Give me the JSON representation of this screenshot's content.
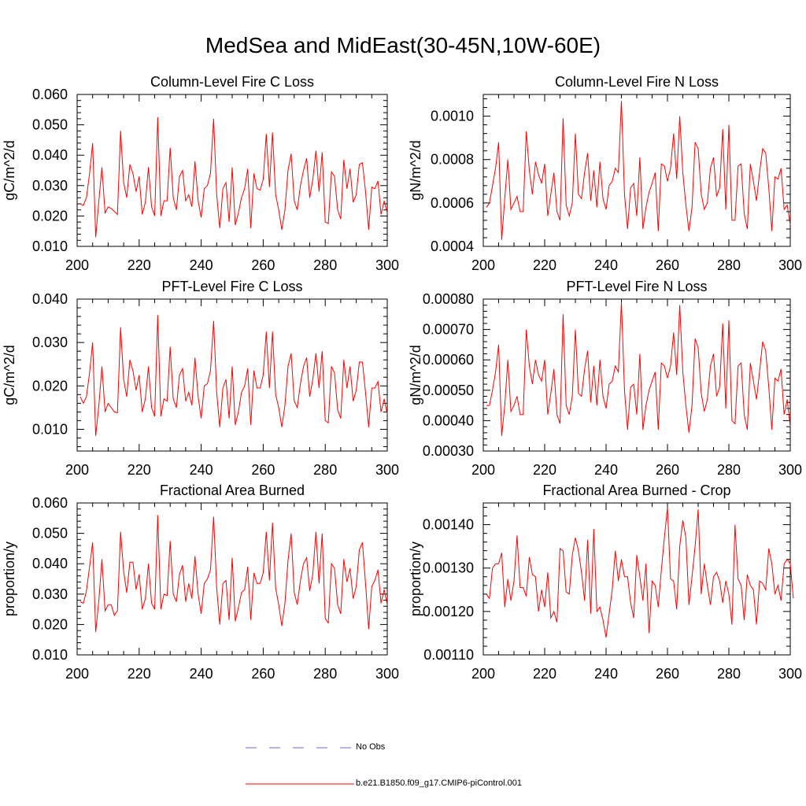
{
  "title": "MedSea and MidEast(30-45N,10W-60E)",
  "colors": {
    "model_line": "#ff0000",
    "obs_line": "#6a6acd",
    "axis": "#000000"
  },
  "legend": [
    {
      "label": "No Obs",
      "style": "dashed",
      "color": "#6a6acd"
    },
    {
      "label": "b.e21.B1850.f09_g17.CMIP6-piControl.001",
      "style": "solid",
      "color": "#ff0000"
    }
  ],
  "chart_data": [
    {
      "type": "line",
      "title": "Column-Level Fire C Loss",
      "ylabel": "gC/m^2/d",
      "xlim": [
        200,
        300
      ],
      "ylim": [
        0.01,
        0.06
      ],
      "xticks": [
        200,
        220,
        240,
        260,
        280,
        300
      ],
      "xtick_labels": [
        "200",
        "220",
        "240",
        "260",
        "280",
        "300"
      ],
      "yticks": [
        0.01,
        0.02,
        0.03,
        0.04,
        0.05,
        0.06
      ],
      "ytick_labels": [
        "0.010",
        "0.020",
        "0.030",
        "0.040",
        "0.050",
        "0.060"
      ],
      "series": [
        {
          "name": "b.e21.B1850.f09_g17.CMIP6-piControl.001",
          "x_start": 201,
          "values": [
            0.024,
            0.0235,
            0.026,
            0.034,
            0.044,
            0.013,
            0.025,
            0.036,
            0.021,
            0.023,
            0.0225,
            0.0215,
            0.0205,
            0.048,
            0.031,
            0.026,
            0.037,
            0.034,
            0.028,
            0.033,
            0.0205,
            0.0245,
            0.036,
            0.023,
            0.02,
            0.0525,
            0.02,
            0.025,
            0.025,
            0.0425,
            0.026,
            0.022,
            0.033,
            0.035,
            0.025,
            0.027,
            0.023,
            0.038,
            0.025,
            0.0195,
            0.029,
            0.03,
            0.034,
            0.052,
            0.027,
            0.016,
            0.029,
            0.031,
            0.018,
            0.036,
            0.017,
            0.021,
            0.026,
            0.029,
            0.0355,
            0.016,
            0.034,
            0.029,
            0.0285,
            0.032,
            0.047,
            0.0295,
            0.0475,
            0.027,
            0.022,
            0.0155,
            0.022,
            0.035,
            0.0405,
            0.025,
            0.022,
            0.03,
            0.035,
            0.039,
            0.026,
            0.032,
            0.0415,
            0.028,
            0.041,
            0.018,
            0.0175,
            0.0345,
            0.033,
            0.022,
            0.019,
            0.0385,
            0.029,
            0.0355,
            0.0245,
            0.027,
            0.037,
            0.0375,
            0.028,
            0.0155,
            0.0295,
            0.029,
            0.0315,
            0.0205,
            0.025,
            0.021
          ]
        }
      ]
    },
    {
      "type": "line",
      "title": "Column-Level Fire N Loss",
      "ylabel": "gN/m^2/d",
      "xlim": [
        200,
        300
      ],
      "ylim": [
        0.0004,
        0.0011
      ],
      "xticks": [
        200,
        220,
        240,
        260,
        280,
        300
      ],
      "xtick_labels": [
        "200",
        "220",
        "240",
        "260",
        "280",
        "300"
      ],
      "yticks": [
        0.0004,
        0.0006,
        0.0008,
        0.001
      ],
      "ytick_labels": [
        "0.0004",
        "0.0006",
        "0.0008",
        "0.0010"
      ],
      "series": [
        {
          "name": "b.e21.B1850.f09_g17.CMIP6-piControl.001",
          "x_start": 201,
          "values": [
            0.00058,
            0.0006,
            0.00068,
            0.00076,
            0.00088,
            0.00043,
            0.00062,
            0.0008,
            0.00057,
            0.0006,
            0.00063,
            0.00056,
            0.00056,
            0.00093,
            0.00075,
            0.00064,
            0.00079,
            0.00073,
            0.00069,
            0.00078,
            0.00054,
            0.00064,
            0.00074,
            0.00056,
            0.00052,
            0.00099,
            0.00059,
            0.00054,
            0.0006,
            0.00092,
            0.00064,
            0.00062,
            0.00074,
            0.00083,
            0.00061,
            0.00075,
            0.00058,
            0.00079,
            0.00062,
            0.00057,
            0.00068,
            0.0007,
            0.00076,
            0.00074,
            0.00107,
            0.00064,
            0.00048,
            0.00067,
            0.00069,
            0.00054,
            0.00081,
            0.00048,
            0.00058,
            0.00065,
            0.00069,
            0.00074,
            0.00047,
            0.00078,
            0.00077,
            0.0007,
            0.00076,
            0.00092,
            0.00071,
            0.001,
            0.00074,
            0.00059,
            0.00047,
            0.00058,
            0.00088,
            0.00085,
            0.00064,
            0.00057,
            0.0006,
            0.00076,
            0.00081,
            0.00063,
            0.00067,
            0.00094,
            0.00057,
            0.00096,
            0.00052,
            0.00052,
            0.00077,
            0.00078,
            0.00055,
            0.00048,
            0.00078,
            0.0007,
            0.00061,
            0.00074,
            0.00085,
            0.00083,
            0.00067,
            0.00047,
            0.00072,
            0.00071,
            0.00076,
            0.00057,
            0.00059,
            0.0005
          ]
        }
      ]
    },
    {
      "type": "line",
      "title": "PFT-Level Fire C Loss",
      "ylabel": "gC/m^2/d",
      "xlim": [
        200,
        300
      ],
      "ylim": [
        0.005,
        0.04
      ],
      "xticks": [
        200,
        220,
        240,
        260,
        280,
        300
      ],
      "xtick_labels": [
        "200",
        "220",
        "240",
        "260",
        "280",
        "300"
      ],
      "yticks": [
        0.01,
        0.02,
        0.03,
        0.04
      ],
      "ytick_labels": [
        "0.010",
        "0.020",
        "0.030",
        "0.040"
      ],
      "series": [
        {
          "name": "b.e21.B1850.f09_g17.CMIP6-piControl.001",
          "x_start": 201,
          "values": [
            0.0175,
            0.016,
            0.0175,
            0.023,
            0.03,
            0.0085,
            0.0155,
            0.0245,
            0.014,
            0.016,
            0.015,
            0.014,
            0.0138,
            0.0335,
            0.0215,
            0.0175,
            0.026,
            0.0235,
            0.019,
            0.0225,
            0.014,
            0.017,
            0.0245,
            0.015,
            0.013,
            0.0363,
            0.013,
            0.017,
            0.0165,
            0.029,
            0.017,
            0.015,
            0.0225,
            0.024,
            0.0165,
            0.0185,
            0.0155,
            0.0265,
            0.0175,
            0.0125,
            0.02,
            0.0205,
            0.0235,
            0.035,
            0.0185,
            0.0105,
            0.0195,
            0.0215,
            0.0125,
            0.0245,
            0.011,
            0.014,
            0.0185,
            0.02,
            0.024,
            0.011,
            0.0235,
            0.0195,
            0.0195,
            0.0225,
            0.0325,
            0.0195,
            0.0325,
            0.018,
            0.015,
            0.0105,
            0.0155,
            0.0245,
            0.0275,
            0.0165,
            0.015,
            0.0205,
            0.0245,
            0.0265,
            0.0175,
            0.0215,
            0.0275,
            0.0195,
            0.028,
            0.012,
            0.0115,
            0.0245,
            0.023,
            0.0145,
            0.0125,
            0.026,
            0.0195,
            0.0245,
            0.0165,
            0.019,
            0.0255,
            0.0255,
            0.0185,
            0.0105,
            0.0195,
            0.0195,
            0.021,
            0.014,
            0.017,
            0.0135
          ]
        }
      ]
    },
    {
      "type": "line",
      "title": "PFT-Level Fire N Loss",
      "ylabel": "gN/m^2/d",
      "xlim": [
        200,
        300
      ],
      "ylim": [
        0.0003,
        0.0008
      ],
      "xticks": [
        200,
        220,
        240,
        260,
        280,
        300
      ],
      "xtick_labels": [
        "200",
        "220",
        "240",
        "260",
        "280",
        "300"
      ],
      "yticks": [
        0.0003,
        0.0004,
        0.0005,
        0.0006,
        0.0007,
        0.0008
      ],
      "ytick_labels": [
        "0.00030",
        "0.00040",
        "0.00050",
        "0.00060",
        "0.00070",
        "0.00080"
      ],
      "series": [
        {
          "name": "b.e21.B1850.f09_g17.CMIP6-piControl.001",
          "x_start": 201,
          "values": [
            0.00045,
            0.00045,
            0.0005,
            0.00056,
            0.00065,
            0.00035,
            0.00045,
            0.0006,
            0.00043,
            0.00045,
            0.00048,
            0.00042,
            0.00042,
            0.0007,
            0.00058,
            0.00052,
            0.0006,
            0.00055,
            0.00053,
            0.0006,
            0.00042,
            0.00049,
            0.00057,
            0.00042,
            0.00039,
            0.00075,
            0.00045,
            0.00042,
            0.00048,
            0.0007,
            0.00049,
            0.00048,
            0.00057,
            0.00063,
            0.00046,
            0.00058,
            0.00045,
            0.0006,
            0.00048,
            0.00044,
            0.00052,
            0.00053,
            0.00058,
            0.00056,
            0.00079,
            0.0005,
            0.00037,
            0.00051,
            0.00052,
            0.00042,
            0.00062,
            0.00037,
            0.00045,
            0.0005,
            0.00053,
            0.00056,
            0.00037,
            0.00059,
            0.00058,
            0.00054,
            0.00058,
            0.00069,
            0.00055,
            0.00078,
            0.00056,
            0.00045,
            0.00036,
            0.00045,
            0.00067,
            0.00064,
            0.00049,
            0.00043,
            0.00047,
            0.00058,
            0.00062,
            0.00048,
            0.00051,
            0.00072,
            0.00044,
            0.00073,
            0.0004,
            0.00039,
            0.00058,
            0.00059,
            0.00042,
            0.00037,
            0.00059,
            0.00053,
            0.00047,
            0.00056,
            0.00066,
            0.00063,
            0.00051,
            0.00037,
            0.00054,
            0.00053,
            0.00057,
            0.00042,
            0.00047,
            0.00038
          ]
        }
      ]
    },
    {
      "type": "line",
      "title": "Fractional Area Burned",
      "ylabel": "proportion/y",
      "xlim": [
        200,
        300
      ],
      "ylim": [
        0.01,
        0.06
      ],
      "xticks": [
        200,
        220,
        240,
        260,
        280,
        300
      ],
      "xtick_labels": [
        "200",
        "220",
        "240",
        "260",
        "280",
        "300"
      ],
      "yticks": [
        0.01,
        0.02,
        0.03,
        0.04,
        0.05,
        0.06
      ],
      "ytick_labels": [
        "0.010",
        "0.020",
        "0.030",
        "0.040",
        "0.050",
        "0.060"
      ],
      "series": [
        {
          "name": "b.e21.B1850.f09_g17.CMIP6-piControl.001",
          "x_start": 201,
          "values": [
            0.0275,
            0.027,
            0.031,
            0.039,
            0.047,
            0.0175,
            0.028,
            0.0415,
            0.0245,
            0.0265,
            0.0265,
            0.023,
            0.0245,
            0.0505,
            0.0375,
            0.0305,
            0.0405,
            0.0405,
            0.0315,
            0.0365,
            0.025,
            0.0285,
            0.04,
            0.027,
            0.025,
            0.056,
            0.025,
            0.03,
            0.0295,
            0.0475,
            0.03,
            0.0275,
            0.0365,
            0.0395,
            0.0275,
            0.0335,
            0.0285,
            0.0425,
            0.03,
            0.0235,
            0.0335,
            0.035,
            0.038,
            0.0555,
            0.032,
            0.02,
            0.0335,
            0.0345,
            0.0215,
            0.042,
            0.021,
            0.0255,
            0.0305,
            0.0315,
            0.039,
            0.0215,
            0.037,
            0.0335,
            0.0335,
            0.037,
            0.0505,
            0.0345,
            0.0535,
            0.032,
            0.0265,
            0.0195,
            0.027,
            0.041,
            0.05,
            0.0305,
            0.0265,
            0.0345,
            0.04,
            0.042,
            0.031,
            0.0365,
            0.0505,
            0.0335,
            0.05,
            0.022,
            0.0205,
            0.04,
            0.0385,
            0.0265,
            0.0235,
            0.0415,
            0.034,
            0.0385,
            0.0285,
            0.0325,
            0.0445,
            0.047,
            0.0335,
            0.0185,
            0.0325,
            0.0345,
            0.038,
            0.027,
            0.0315,
            0.0265
          ]
        }
      ]
    },
    {
      "type": "line",
      "title": "Fractional Area Burned - Crop",
      "ylabel": "proportion/y",
      "xlim": [
        200,
        300
      ],
      "ylim": [
        0.0011,
        0.00145
      ],
      "xticks": [
        200,
        220,
        240,
        260,
        280,
        300
      ],
      "xtick_labels": [
        "200",
        "220",
        "240",
        "260",
        "280",
        "300"
      ],
      "yticks": [
        0.0011,
        0.0012,
        0.0013,
        0.0014
      ],
      "ytick_labels": [
        "0.00110",
        "0.00120",
        "0.00130",
        "0.00140"
      ],
      "series": [
        {
          "name": "b.e21.B1850.f09_g17.CMIP6-piControl.001",
          "x_start": 201,
          "values": [
            0.00124,
            0.00123,
            0.0013,
            0.00131,
            0.00131,
            0.001335,
            0.00121,
            0.001275,
            0.001225,
            0.00127,
            0.001375,
            0.001255,
            0.001255,
            0.001235,
            0.001325,
            0.001285,
            0.00128,
            0.0012,
            0.00125,
            0.00121,
            0.00129,
            0.001185,
            0.0012,
            0.001175,
            0.001345,
            0.00134,
            0.001245,
            0.00124,
            0.00133,
            0.00137,
            0.00134,
            0.00129,
            0.001225,
            0.001365,
            0.001195,
            0.00139,
            0.0012,
            0.00121,
            0.00118,
            0.00114,
            0.001195,
            0.00125,
            0.00134,
            0.00127,
            0.00132,
            0.00128,
            0.00128,
            0.00122,
            0.001185,
            0.00133,
            0.00128,
            0.001225,
            0.00131,
            0.00115,
            0.00127,
            0.00126,
            0.00121,
            0.001295,
            0.00137,
            0.00144,
            0.001275,
            0.00127,
            0.001205,
            0.00135,
            0.00141,
            0.00137,
            0.001215,
            0.00128,
            0.00135,
            0.001435,
            0.00124,
            0.00131,
            0.00126,
            0.001215,
            0.00128,
            0.00129,
            0.00127,
            0.00122,
            0.00127,
            0.00124,
            0.00117,
            0.0014,
            0.001275,
            0.00126,
            0.00118,
            0.001285,
            0.00126,
            0.00125,
            0.00117,
            0.00127,
            0.001265,
            0.00125,
            0.001345,
            0.00131,
            0.00124,
            0.00126,
            0.001225,
            0.00131,
            0.00132,
            0.00131,
            0.00123
          ]
        }
      ]
    }
  ]
}
